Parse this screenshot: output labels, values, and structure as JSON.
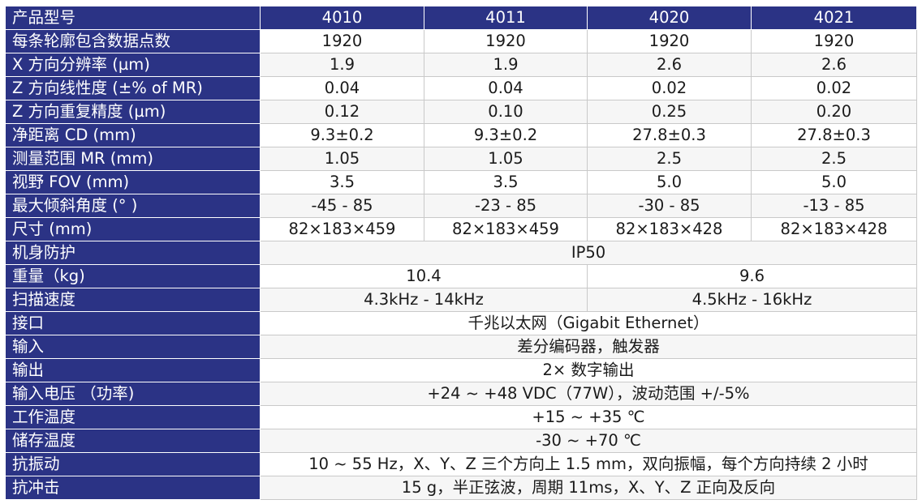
{
  "header": {
    "label": "产品型号",
    "models": [
      "4010",
      "4011",
      "4020",
      "4021"
    ]
  },
  "rows_per_model": [
    {
      "label": "每条轮廓包含数据点数",
      "values": [
        "1920",
        "1920",
        "1920",
        "1920"
      ]
    },
    {
      "label": "X 方向分辨率 (µm)",
      "values": [
        "1.9",
        "1.9",
        "2.6",
        "2.6"
      ]
    },
    {
      "label": "Z 方向线性度 (±% of MR)",
      "values": [
        "0.04",
        "0.04",
        "0.02",
        "0.02"
      ]
    },
    {
      "label": "Z 方向重复精度 (µm)",
      "values": [
        "0.12",
        "0.10",
        "0.25",
        "0.20"
      ]
    },
    {
      "label": "净距离 CD (mm)",
      "values": [
        "9.3±0.2",
        "9.3±0.2",
        "27.8±0.3",
        "27.8±0.3"
      ]
    },
    {
      "label": "测量范围 MR (mm)",
      "values": [
        "1.05",
        "1.05",
        "2.5",
        "2.5"
      ]
    },
    {
      "label": "视野 FOV (mm)",
      "values": [
        "3.5",
        "3.5",
        "5.0",
        "5.0"
      ]
    },
    {
      "label": "最大倾斜角度 (° )",
      "values": [
        "-45 - 85",
        "-23 - 85",
        "-30 - 85",
        "-13 - 85"
      ]
    },
    {
      "label": "尺寸 (mm)",
      "values": [
        "82×183×459",
        "82×183×459",
        "82×183×428",
        "82×183×428"
      ]
    }
  ],
  "row_protection": {
    "label": "机身防护",
    "value": "IP50"
  },
  "row_weight": {
    "label": "重量（kg)",
    "values": [
      "10.4",
      "9.6"
    ]
  },
  "row_scan": {
    "label": "扫描速度",
    "values": [
      "4.3kHz - 14kHz",
      "4.5kHz - 16kHz"
    ]
  },
  "rows_shared": [
    {
      "label": "接口",
      "value": "千兆以太网（Gigabit Ethernet）"
    },
    {
      "label": "输入",
      "value": "差分编码器，触发器"
    },
    {
      "label": "输出",
      "value": "2× 数字输出"
    },
    {
      "label": "输入电压 （功率)",
      "value": "+24 ~ +48 VDC（77W），波动范围 +/-5%"
    },
    {
      "label": "工作温度",
      "value": "+15 ~ +35 ℃"
    },
    {
      "label": "储存温度",
      "value": "-30 ~ +70 ℃"
    },
    {
      "label": "抗振动",
      "value": "10 ~ 55 Hz，X、Y、Z 三个方向上 1.5 mm，双向振幅，每个方向持续 2 小时"
    },
    {
      "label": "抗冲击",
      "value": "15 g，半正弦波，周期 11ms，X、Y、Z 正向及反向"
    }
  ],
  "colors": {
    "header_bg": "#2b3385",
    "header_text": "#ffffff",
    "border": "#c9c9c9"
  }
}
